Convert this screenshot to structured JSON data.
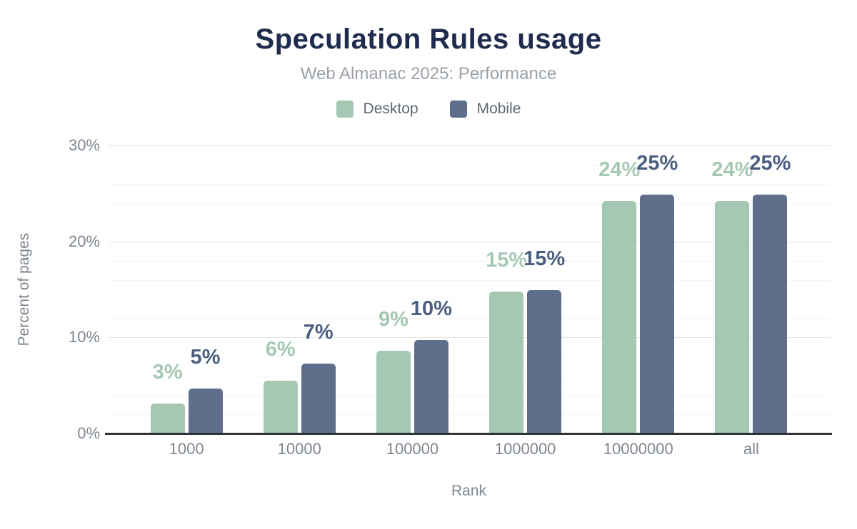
{
  "chart_data": {
    "type": "bar",
    "title": "Speculation Rules usage",
    "subtitle": "Web Almanac 2025: Performance",
    "xlabel": "Rank",
    "ylabel": "Percent of pages",
    "categories": [
      "1000",
      "10000",
      "100000",
      "1000000",
      "10000000",
      "all"
    ],
    "series": [
      {
        "name": "Desktop",
        "color": "#a5c8b4",
        "label_color": "#a5c8b4",
        "values": [
          3.1,
          5.5,
          8.6,
          14.8,
          24.2,
          24.2
        ],
        "labels": [
          "3%",
          "6%",
          "9%",
          "15%",
          "24%",
          "24%"
        ]
      },
      {
        "name": "Mobile",
        "color": "#5e6e8b",
        "label_color": "#4c5f80",
        "values": [
          4.7,
          7.3,
          9.7,
          14.9,
          24.9,
          24.9
        ],
        "labels": [
          "5%",
          "7%",
          "10%",
          "15%",
          "25%",
          "25%"
        ]
      }
    ],
    "ylim": [
      0,
      30
    ],
    "yticks": [
      {
        "value": 0,
        "label": "0%"
      },
      {
        "value": 10,
        "label": "10%"
      },
      {
        "value": 20,
        "label": "20%"
      },
      {
        "value": 30,
        "label": "30%"
      }
    ],
    "grid": {
      "major_step": 10,
      "minor_step": 2
    },
    "legend_position": "top"
  },
  "style": {
    "background": "#ffffff",
    "title_color": "#202c4e",
    "subtitle_color": "#9aa1a8",
    "legend_text_color": "#5f6873",
    "axis_text_color": "#7e868f",
    "axis_line_color": "#303338",
    "grid_major_color": "#e2e2e2",
    "grid_minor_color": "#f5f5f5"
  }
}
